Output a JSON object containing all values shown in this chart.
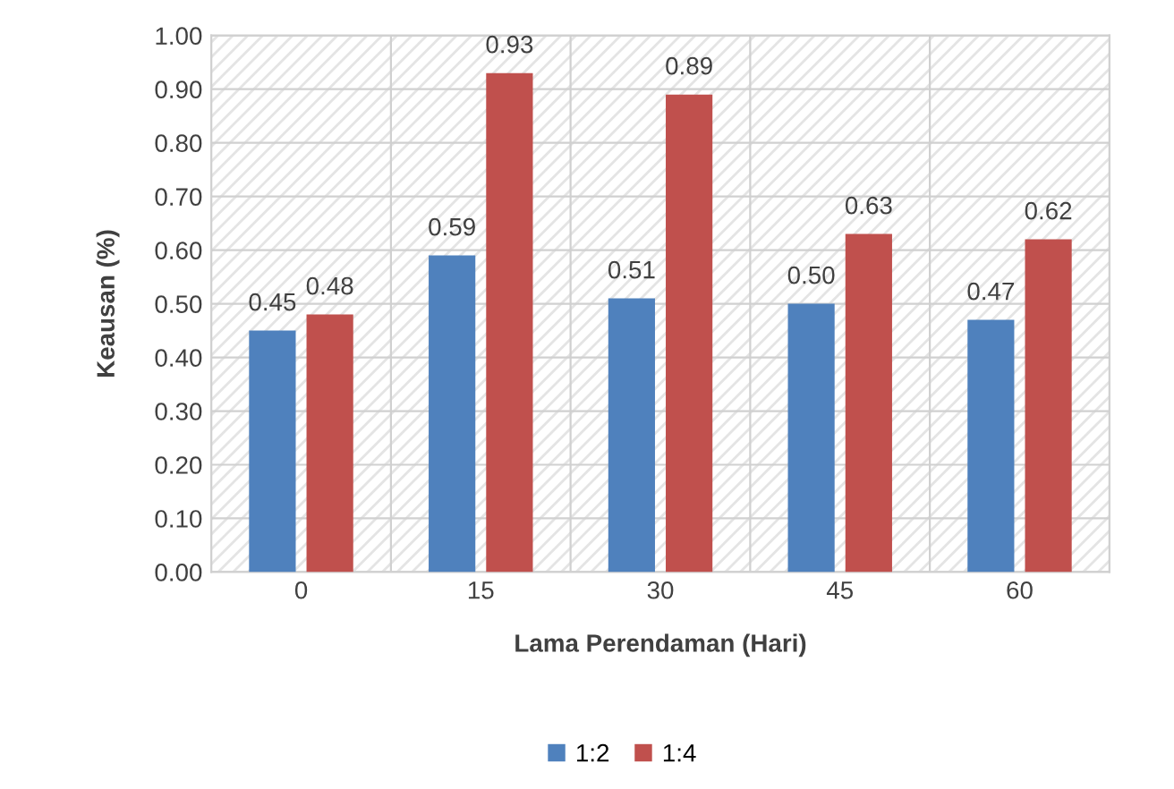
{
  "chart_data": {
    "type": "bar",
    "xlabel": "Lama Perendaman (Hari)",
    "ylabel": "Keausan (%)",
    "categories": [
      "0",
      "15",
      "30",
      "45",
      "60"
    ],
    "series": [
      {
        "name": "1:2",
        "color": "#4f81bd",
        "values": [
          0.45,
          0.59,
          0.51,
          0.5,
          0.47
        ],
        "value_labels": [
          "0.45",
          "0.59",
          "0.51",
          "0.50",
          "0.47"
        ]
      },
      {
        "name": "1:4",
        "color": "#c0504d",
        "values": [
          0.48,
          0.93,
          0.89,
          0.63,
          0.62
        ],
        "value_labels": [
          "0.48",
          "0.93",
          "0.89",
          "0.63",
          "0.62"
        ]
      }
    ],
    "ylim": [
      0,
      1
    ],
    "yticks": [
      {
        "value": 0,
        "label": "0.00"
      },
      {
        "value": 0.1,
        "label": "0.10"
      },
      {
        "value": 0.2,
        "label": "0.20"
      },
      {
        "value": 0.3,
        "label": "0.30"
      },
      {
        "value": 0.4,
        "label": "0.40"
      },
      {
        "value": 0.5,
        "label": "0.50"
      },
      {
        "value": 0.6,
        "label": "0.60"
      },
      {
        "value": 0.7,
        "label": "0.70"
      },
      {
        "value": 0.8,
        "label": "0.80"
      },
      {
        "value": 0.9,
        "label": "0.90"
      },
      {
        "value": 1,
        "label": "1.00"
      }
    ],
    "grid": true,
    "legend": "bottom"
  }
}
